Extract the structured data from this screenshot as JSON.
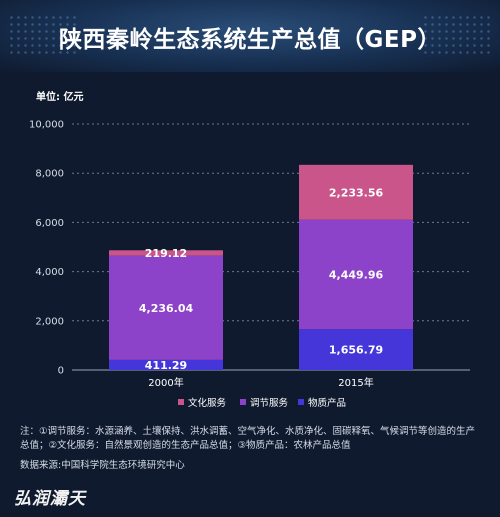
{
  "title": "陕西秦岭生态系统生产总值（GEP）",
  "notes": {
    "line1": "注：①调节服务：水源涵养、土壤保持、洪水调蓄、空气净化、水质净化、固碳释氧、气候调节等创造的生产总值；②文化服务：自然景观创造的生态产品总值；③物质产品：农林产品总值",
    "source": "数据来源:中国科学院生态环境研究中心"
  },
  "brand": "弘润灞天",
  "colors": {
    "culture": "#c9558a",
    "regulation": "#8c43c9",
    "material": "#4436d8",
    "grid": "#6a7a94",
    "axis_text": "#d7dde8"
  },
  "chart_data": {
    "type": "bar",
    "stacked": true,
    "unit_label": "单位: 亿元",
    "categories": [
      "2000年",
      "2015年"
    ],
    "ylim": [
      0,
      10000
    ],
    "yticks": [
      "0",
      "2,000",
      "4,000",
      "6,000",
      "8,000",
      "10,000"
    ],
    "ytick_values": [
      0,
      2000,
      4000,
      6000,
      8000,
      10000
    ],
    "grid": true,
    "legend_position": "bottom",
    "series": [
      {
        "name": "物质产品",
        "key": "material",
        "values": [
          411.29,
          1656.79
        ],
        "labels": [
          "411.29",
          "1,656.79"
        ]
      },
      {
        "name": "调节服务",
        "key": "regulation",
        "values": [
          4236.04,
          4449.96
        ],
        "labels": [
          "4,236.04",
          "4,449.96"
        ]
      },
      {
        "name": "文化服务",
        "key": "culture",
        "values": [
          219.12,
          2233.56
        ],
        "labels": [
          "219.12",
          "2,233.56"
        ]
      }
    ],
    "legend_order": [
      "culture",
      "regulation",
      "material"
    ]
  }
}
